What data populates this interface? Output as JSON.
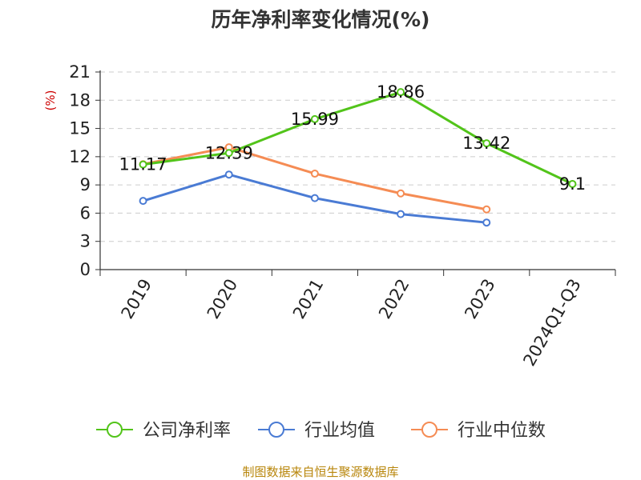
{
  "chart_data": {
    "type": "line",
    "title": "历年净利率变化情况(%)",
    "ylabel": "(%)",
    "xlabel": "",
    "categories": [
      "2019",
      "2020",
      "2021",
      "2022",
      "2023",
      "2024Q1-Q3"
    ],
    "ylim": [
      0,
      21
    ],
    "yticks": [
      0,
      3,
      6,
      9,
      12,
      15,
      18,
      21
    ],
    "grid": true,
    "legend_position": "bottom",
    "series": [
      {
        "name": "公司净利率",
        "color": "#52c41a",
        "values": [
          11.17,
          12.39,
          15.99,
          18.86,
          13.42,
          9.1
        ],
        "labels": [
          "11.17",
          "12.39",
          "15.99",
          "18.86",
          "13.42",
          "9.1"
        ]
      },
      {
        "name": "行业均值",
        "color": "#4a7bd4",
        "values": [
          7.3,
          10.1,
          7.6,
          5.9,
          5.0,
          null
        ]
      },
      {
        "name": "行业中位数",
        "color": "#f58c54",
        "values": [
          11.2,
          13.0,
          10.2,
          8.1,
          6.4,
          null
        ]
      }
    ],
    "source": "制图数据来自恒生聚源数据库"
  }
}
